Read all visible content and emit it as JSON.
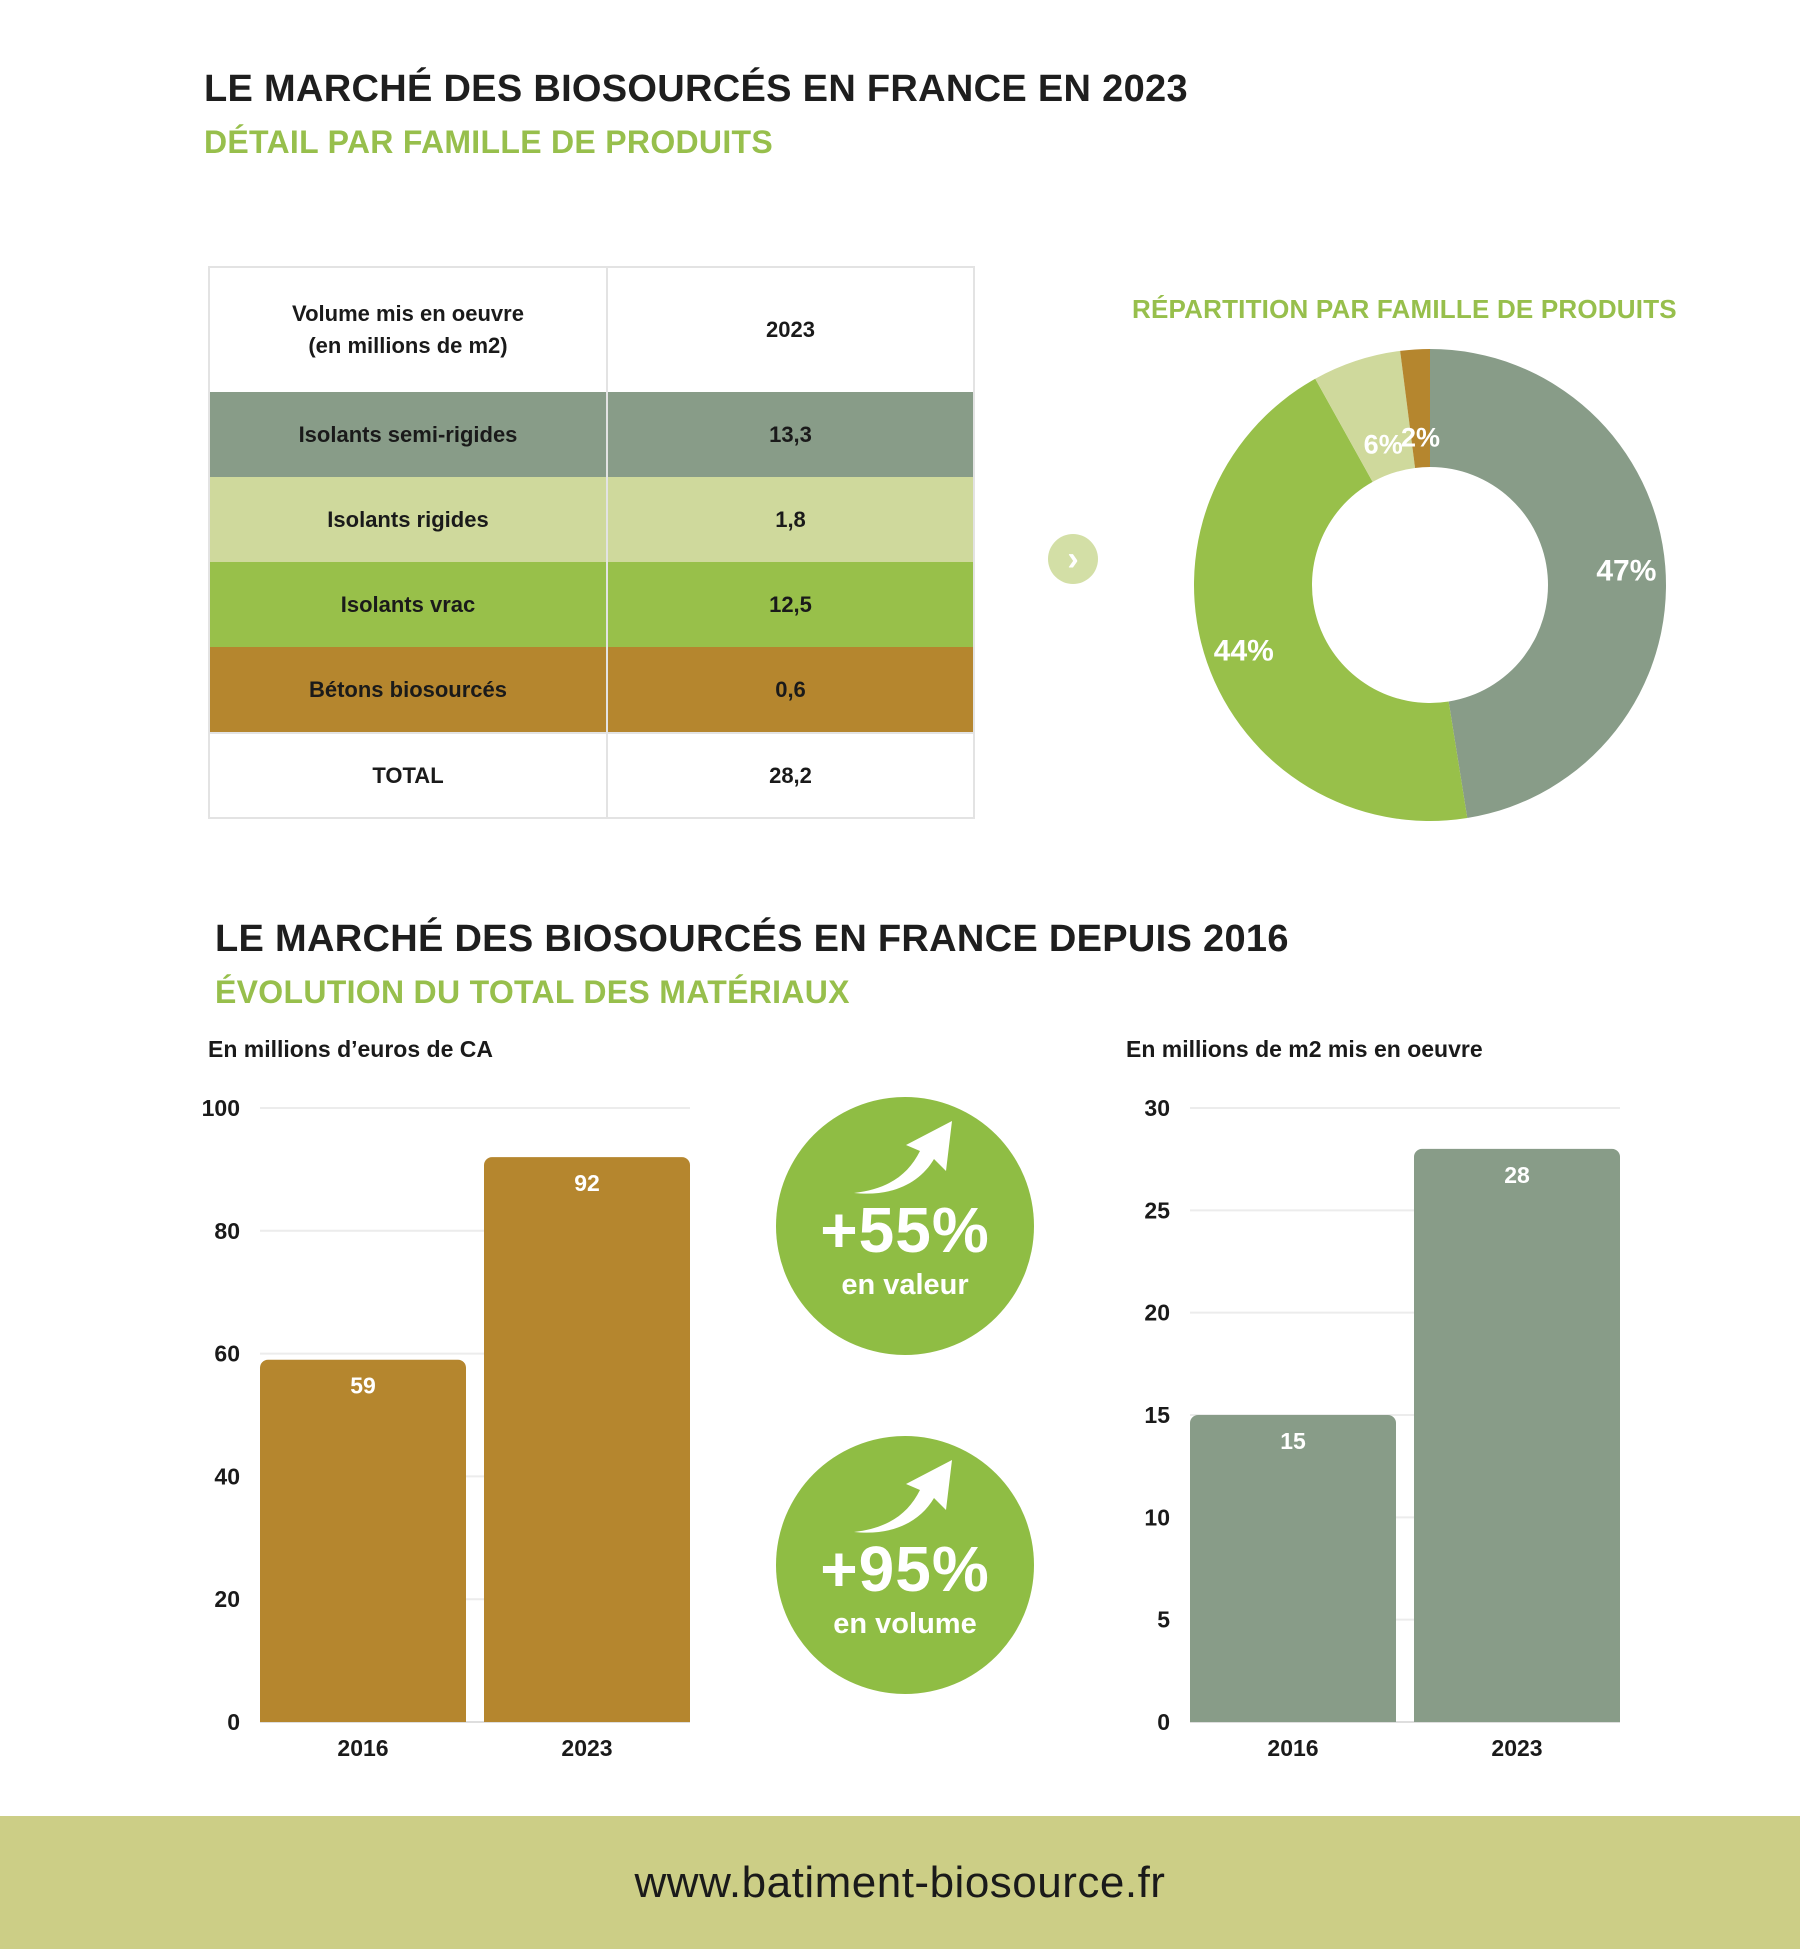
{
  "section1": {
    "title": "LE MARCHÉ DES BIOSOURCÉS EN FRANCE EN 2023",
    "subtitle": "DÉTAIL PAR FAMILLE DE PRODUITS"
  },
  "table": {
    "header_col1_line1": "Volume mis en oeuvre",
    "header_col1_line2": "(en millions de m2)",
    "header_col2": "2023",
    "rows": [
      {
        "label": "Isolants semi-rigides",
        "value": "13,3",
        "color": "#889c88"
      },
      {
        "label": "Isolants rigides",
        "value": "1,8",
        "color": "#cfd99c"
      },
      {
        "label": "Isolants vrac",
        "value": "12,5",
        "color": "#98c04a"
      },
      {
        "label": "Bétons biosourcés",
        "value": "0,6",
        "color": "#b5862e"
      }
    ],
    "total_label": "TOTAL",
    "total_value": "28,2"
  },
  "nav": {
    "icon": "chevron-right-icon",
    "glyph": "›"
  },
  "colors": {
    "semi_rigides": "#889c88",
    "rigides": "#cfd99c",
    "vrac": "#98c04a",
    "betons": "#b5862e",
    "accent_green": "#97bf4c",
    "badge_green": "#8fbd44",
    "footer_bg": "#ccce86"
  },
  "section2": {
    "title": "LE MARCHÉ DES BIOSOURCÉS EN FRANCE DEPUIS 2016",
    "subtitle": "ÉVOLUTION DU TOTAL DES MATÉRIAUX"
  },
  "badges": [
    {
      "pct": "+55%",
      "label": "en valeur",
      "icon": "trend-up-arrow-icon"
    },
    {
      "pct": "+95%",
      "label": "en volume",
      "icon": "trend-up-arrow-icon"
    }
  ],
  "footer": {
    "url": "www.batiment-biosource.fr"
  },
  "chart_data": [
    {
      "type": "pie",
      "subtype": "donut",
      "title": "RÉPARTITION PAR FAMILLE DE PRODUITS",
      "slices": [
        {
          "label": "47%",
          "value": 47,
          "color": "#889c88"
        },
        {
          "label": "44%",
          "value": 44,
          "color": "#98c04a"
        },
        {
          "label": "6%",
          "value": 6,
          "color": "#cfd99c"
        },
        {
          "label": "2%",
          "value": 2,
          "color": "#b5862e"
        }
      ]
    },
    {
      "type": "bar",
      "ylabel": "En millions d’euros de CA",
      "categories": [
        "2016",
        "2023"
      ],
      "values": [
        59,
        92
      ],
      "ylim": [
        0,
        100
      ],
      "yticks": [
        0,
        20,
        40,
        60,
        80,
        100
      ],
      "color": "#b5862e",
      "grid": true
    },
    {
      "type": "bar",
      "ylabel": "En millions de m2 mis en oeuvre",
      "categories": [
        "2016",
        "2023"
      ],
      "values": [
        15,
        28
      ],
      "ylim": [
        0,
        30
      ],
      "yticks": [
        0,
        5,
        10,
        15,
        20,
        25,
        30
      ],
      "color": "#889c88",
      "grid": true
    }
  ]
}
